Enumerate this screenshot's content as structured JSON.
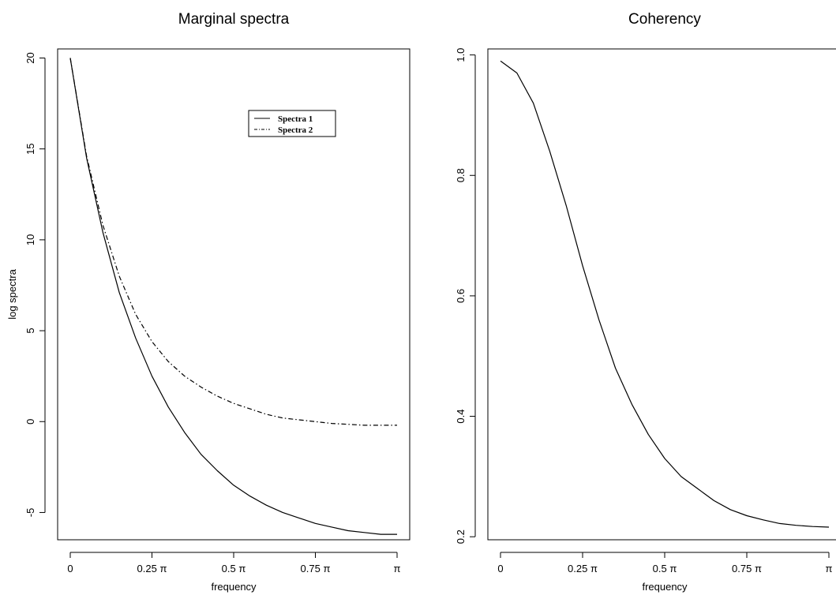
{
  "chart_data": [
    {
      "type": "line",
      "title": "Marginal spectra",
      "xlabel": "frequency",
      "ylabel": "log spectra",
      "xlim": [
        0,
        1
      ],
      "ylim": [
        -6.5,
        20.5
      ],
      "x_ticks": [
        0,
        0.25,
        0.5,
        0.75,
        1
      ],
      "x_tick_labels": [
        "0",
        "0.25 π",
        "0.5 π",
        "0.75 π",
        "π"
      ],
      "y_ticks": [
        -5,
        0,
        5,
        10,
        15,
        20
      ],
      "y_tick_labels": [
        "-5",
        "0",
        "5",
        "10",
        "15",
        "20"
      ],
      "legend": {
        "position": "top-right",
        "entries": [
          "Spectra 1",
          "Spectra 2"
        ]
      },
      "x": [
        0,
        0.05,
        0.1,
        0.15,
        0.2,
        0.25,
        0.3,
        0.35,
        0.4,
        0.45,
        0.5,
        0.55,
        0.6,
        0.65,
        0.7,
        0.75,
        0.8,
        0.85,
        0.9,
        0.95,
        1
      ],
      "series": [
        {
          "name": "Spectra 1",
          "style": "solid",
          "values": [
            20.0,
            14.5,
            10.4,
            7.1,
            4.6,
            2.5,
            0.8,
            -0.6,
            -1.8,
            -2.7,
            -3.5,
            -4.1,
            -4.6,
            -5.0,
            -5.3,
            -5.6,
            -5.8,
            -6.0,
            -6.1,
            -6.2,
            -6.2
          ]
        },
        {
          "name": "Spectra 2",
          "style": "dash-dot",
          "values": [
            20.0,
            14.6,
            10.8,
            8.0,
            5.9,
            4.4,
            3.3,
            2.5,
            1.9,
            1.4,
            1.0,
            0.7,
            0.4,
            0.2,
            0.1,
            0.0,
            -0.1,
            -0.15,
            -0.2,
            -0.2,
            -0.2
          ]
        }
      ]
    },
    {
      "type": "line",
      "title": "Coherency",
      "xlabel": "frequency",
      "ylabel": "",
      "xlim": [
        0,
        1
      ],
      "ylim": [
        0.195,
        1.01
      ],
      "x_ticks": [
        0,
        0.25,
        0.5,
        0.75,
        1
      ],
      "x_tick_labels": [
        "0",
        "0.25 π",
        "0.5 π",
        "0.75 π",
        "π"
      ],
      "y_ticks": [
        0.2,
        0.4,
        0.6,
        0.8,
        1.0
      ],
      "y_tick_labels": [
        "0.2",
        "0.4",
        "0.6",
        "0.8",
        "1.0"
      ],
      "x": [
        0,
        0.05,
        0.1,
        0.15,
        0.2,
        0.25,
        0.3,
        0.35,
        0.4,
        0.45,
        0.5,
        0.55,
        0.6,
        0.65,
        0.7,
        0.75,
        0.8,
        0.85,
        0.9,
        0.95,
        1
      ],
      "series": [
        {
          "style": "solid",
          "values": [
            0.99,
            0.97,
            0.92,
            0.84,
            0.75,
            0.65,
            0.56,
            0.48,
            0.42,
            0.37,
            0.33,
            0.3,
            0.28,
            0.26,
            0.245,
            0.235,
            0.228,
            0.222,
            0.219,
            0.217,
            0.216
          ]
        }
      ]
    }
  ]
}
